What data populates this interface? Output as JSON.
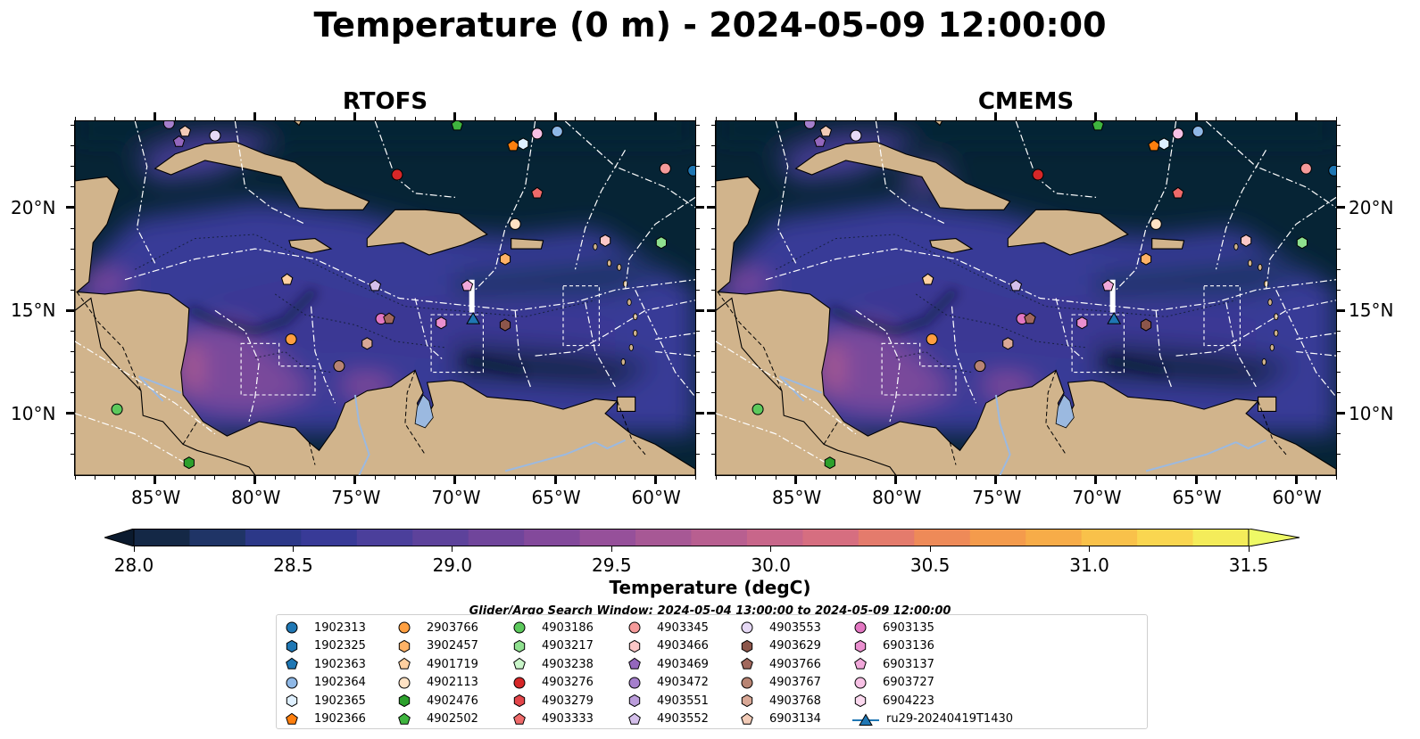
{
  "title": "Temperature (0 m) - 2024-05-09 12:00:00",
  "panels": [
    {
      "title": "RTOFS",
      "variant": "rtofs"
    },
    {
      "title": "CMEMS",
      "variant": "cmems"
    }
  ],
  "axes": {
    "lon_ticks": [
      "85°W",
      "80°W",
      "75°W",
      "70°W",
      "65°W",
      "60°W"
    ],
    "lon_values": [
      -85,
      -80,
      -75,
      -70,
      -65,
      -60
    ],
    "lat_ticks": [
      "20°N",
      "15°N",
      "10°N"
    ],
    "lat_values": [
      20,
      15,
      10
    ],
    "lon_range": [
      -89,
      -58
    ],
    "lat_range": [
      7,
      24.2
    ]
  },
  "colorbar": {
    "label": "Temperature (degC)",
    "tick_labels": [
      "28.0",
      "28.5",
      "29.0",
      "29.5",
      "30.0",
      "30.5",
      "31.0",
      "31.5"
    ],
    "range": [
      28.0,
      31.5
    ],
    "step": 0.25,
    "colors": [
      "#142846",
      "#1f3466",
      "#2c3888",
      "#383a97",
      "#4b3f9b",
      "#5d429b",
      "#70459b",
      "#83499b",
      "#96509a",
      "#a75895",
      "#b85f90",
      "#c8668a",
      "#d66e80",
      "#e47b6c",
      "#ee8a58",
      "#f49b4c",
      "#f7ac48",
      "#f9c14a",
      "#fad650",
      "#f4ec5a"
    ],
    "extend_low_color": "#0b1a2e",
    "extend_high_color": "#eef966"
  },
  "colors": {
    "land": "#d1b48c",
    "deep_ocean": "#062435",
    "warm_sea": "#383a97",
    "river": "#9bb9e0"
  },
  "search_window": "Glider/Argo Search Window: 2024-05-04 13:00:00 to 2024-05-09 12:00:00",
  "legend": [
    {
      "id": "1902313",
      "marker": "circle",
      "color": "#1f77b4"
    },
    {
      "id": "1902325",
      "marker": "hexagon",
      "color": "#1f77b4"
    },
    {
      "id": "1902363",
      "marker": "pentagon",
      "color": "#1f77b4"
    },
    {
      "id": "1902364",
      "marker": "circle",
      "color": "#8fb8e6"
    },
    {
      "id": "1902365",
      "marker": "hexagon",
      "color": "#dff0ff"
    },
    {
      "id": "1902366",
      "marker": "pentagon",
      "color": "#ff7f0e"
    },
    {
      "id": "2903766",
      "marker": "circle",
      "color": "#ff9f40"
    },
    {
      "id": "3902457",
      "marker": "hexagon",
      "color": "#ffb266"
    },
    {
      "id": "4901719",
      "marker": "pentagon",
      "color": "#ffd0a0"
    },
    {
      "id": "4902113",
      "marker": "circle",
      "color": "#ffe2c4"
    },
    {
      "id": "4902476",
      "marker": "hexagon",
      "color": "#2ca02c"
    },
    {
      "id": "4902502",
      "marker": "pentagon",
      "color": "#3fb53f"
    },
    {
      "id": "4903186",
      "marker": "circle",
      "color": "#5cc95c"
    },
    {
      "id": "4903217",
      "marker": "hexagon",
      "color": "#8fe08f"
    },
    {
      "id": "4903238",
      "marker": "pentagon",
      "color": "#c9f5c9"
    },
    {
      "id": "4903276",
      "marker": "circle",
      "color": "#d62728"
    },
    {
      "id": "4903279",
      "marker": "hexagon",
      "color": "#e3454a"
    },
    {
      "id": "4903333",
      "marker": "pentagon",
      "color": "#ef6a6a"
    },
    {
      "id": "4903345",
      "marker": "circle",
      "color": "#f59a9a"
    },
    {
      "id": "4903466",
      "marker": "hexagon",
      "color": "#fbc7c7"
    },
    {
      "id": "4903469",
      "marker": "pentagon",
      "color": "#9467bd"
    },
    {
      "id": "4903472",
      "marker": "circle",
      "color": "#a57fcc"
    },
    {
      "id": "4903551",
      "marker": "hexagon",
      "color": "#bb9ddb"
    },
    {
      "id": "4903552",
      "marker": "pentagon",
      "color": "#d4bfea"
    },
    {
      "id": "4903553",
      "marker": "circle",
      "color": "#e6d9f5"
    },
    {
      "id": "4903629",
      "marker": "hexagon",
      "color": "#8c564b"
    },
    {
      "id": "4903766",
      "marker": "pentagon",
      "color": "#a1685d"
    },
    {
      "id": "4903767",
      "marker": "circle",
      "color": "#b88473"
    },
    {
      "id": "4903768",
      "marker": "hexagon",
      "color": "#d9a896"
    },
    {
      "id": "6903134",
      "marker": "pentagon",
      "color": "#f2cbb7"
    },
    {
      "id": "6903135",
      "marker": "circle",
      "color": "#e377c2"
    },
    {
      "id": "6903136",
      "marker": "hexagon",
      "color": "#ea8fcf"
    },
    {
      "id": "6903137",
      "marker": "pentagon",
      "color": "#f1a8da"
    },
    {
      "id": "6903727",
      "marker": "circle",
      "color": "#f7c1e5"
    },
    {
      "id": "6904223",
      "marker": "hexagon",
      "color": "#fbd9ef"
    },
    {
      "id": "ru29-20240419T1430",
      "marker": "triangle-line",
      "color": "#1f77b4"
    }
  ],
  "markers": [
    {
      "id": "4903472",
      "lon": -84.3,
      "lat": 24.1
    },
    {
      "id": "6903134",
      "lon": -83.5,
      "lat": 23.7
    },
    {
      "id": "4903553",
      "lon": -82.0,
      "lat": 23.5
    },
    {
      "id": "4903469",
      "lon": -83.8,
      "lat": 23.2
    },
    {
      "id": "4902502",
      "lon": -69.9,
      "lat": 24.0
    },
    {
      "id": "1902366",
      "lon": -67.1,
      "lat": 23.0
    },
    {
      "id": "1902365",
      "lon": -66.6,
      "lat": 23.1
    },
    {
      "id": "6903727",
      "lon": -65.9,
      "lat": 23.6
    },
    {
      "id": "1902364",
      "lon": -64.9,
      "lat": 23.7
    },
    {
      "id": "4903276",
      "lon": -72.9,
      "lat": 21.6
    },
    {
      "id": "4903345",
      "lon": -59.5,
      "lat": 21.9
    },
    {
      "id": "1902313",
      "lon": -58.1,
      "lat": 21.8
    },
    {
      "id": "4903333",
      "lon": -65.9,
      "lat": 20.7
    },
    {
      "id": "4902113",
      "lon": -67.0,
      "lat": 19.2
    },
    {
      "id": "4903466",
      "lon": -62.5,
      "lat": 18.4
    },
    {
      "id": "4903217",
      "lon": -59.7,
      "lat": 18.3
    },
    {
      "id": "3902457",
      "lon": -67.5,
      "lat": 17.5
    },
    {
      "id": "4901719",
      "lon": -78.4,
      "lat": 16.5
    },
    {
      "id": "4903552",
      "lon": -74.0,
      "lat": 16.2
    },
    {
      "id": "6903137",
      "lon": -69.4,
      "lat": 16.2
    },
    {
      "id": "6903135",
      "lon": -73.7,
      "lat": 14.6
    },
    {
      "id": "4903766",
      "lon": -73.3,
      "lat": 14.6
    },
    {
      "id": "6903136",
      "lon": -70.7,
      "lat": 14.4
    },
    {
      "id": "4903629",
      "lon": -67.5,
      "lat": 14.3
    },
    {
      "id": "2903766",
      "lon": -78.2,
      "lat": 13.6
    },
    {
      "id": "4903768",
      "lon": -74.4,
      "lat": 13.4
    },
    {
      "id": "4903767",
      "lon": -75.8,
      "lat": 12.3
    },
    {
      "id": "4903186",
      "lon": -86.9,
      "lat": 10.2
    },
    {
      "id": "4902476",
      "lon": -83.3,
      "lat": 7.6
    },
    {
      "id": "ru29-20240419T1430",
      "lon": -69.1,
      "lat": 14.6
    }
  ]
}
